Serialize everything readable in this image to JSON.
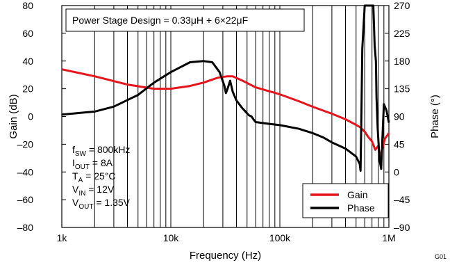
{
  "chart_data": {
    "type": "line",
    "xlabel": "Frequency (Hz)",
    "ylabel": "Gain (dB)",
    "y2label": "Phase (°)",
    "xscale": "log",
    "xlim": [
      1000,
      1000000
    ],
    "ylim": [
      -80,
      80
    ],
    "y2lim": [
      -90,
      270
    ],
    "x_ticks": [
      "1k",
      "10k",
      "100k",
      "1M"
    ],
    "y_ticks": [
      "–80",
      "–60",
      "–40",
      "–20",
      "0",
      "20",
      "40",
      "60",
      "80"
    ],
    "y2_ticks": [
      "–90",
      "–45",
      "0",
      "45",
      "90",
      "135",
      "180",
      "225",
      "270"
    ],
    "grid": "vertical log minor lines",
    "title_box": "Power Stage Design = 0.33μH + 6×22μF",
    "conditions": [
      {
        "main": "f",
        "sub": "SW",
        "rest": " = 800kHz"
      },
      {
        "main": "I",
        "sub": "OUT",
        "rest": " = 8A"
      },
      {
        "main": "T",
        "sub": "A",
        "rest": " = 25°C"
      },
      {
        "main": "V",
        "sub": "IN",
        "rest": " = 12V"
      },
      {
        "main": "V",
        "sub": "OUT",
        "rest": " = 1.35V"
      }
    ],
    "legend_position": "bottom-right",
    "figure_id": "G01",
    "series": [
      {
        "name": "Gain",
        "axis": "left",
        "color": "#e8141b",
        "x": [
          1000,
          2000,
          4000,
          7000,
          10000,
          15000,
          20000,
          27000,
          33000,
          37000,
          45000,
          60000,
          100000,
          150000,
          200000,
          300000,
          400000,
          500000,
          550000,
          600000,
          650000,
          700000,
          750000,
          800000,
          830000,
          870000,
          920000,
          1000000
        ],
        "values": [
          34,
          29,
          23,
          20,
          20,
          22,
          24.5,
          28,
          29,
          29,
          26,
          21,
          16,
          11,
          7,
          2,
          -2,
          -6,
          -8,
          -11,
          -15,
          -18,
          -24,
          -21,
          -30,
          -23,
          -16,
          -12
        ]
      },
      {
        "name": "Phase",
        "axis": "right",
        "color": "#000000",
        "x": [
          1000,
          2000,
          3000,
          5000,
          7000,
          10000,
          15000,
          20000,
          24000,
          28000,
          31000,
          32000,
          33000,
          35000,
          37000,
          40000,
          45000,
          52000,
          55000,
          58000,
          60000,
          80000,
          100000,
          150000,
          200000,
          250000,
          300000,
          400000,
          500000,
          540000,
          550000,
          560000,
          570000,
          600000,
          720000,
          740000,
          760000,
          770000,
          790000,
          820000,
          850000,
          870000,
          900000,
          950000,
          1000000
        ],
        "values": [
          93,
          98,
          106,
          125,
          145,
          162,
          178,
          180,
          178,
          162,
          140,
          128,
          134,
          148,
          130,
          116,
          104,
          92,
          90,
          84,
          81,
          78,
          76,
          70,
          63,
          56,
          48,
          38,
          25,
          13,
          2,
          100,
          200,
          270,
          270,
          205,
          180,
          120,
          70,
          20,
          5,
          50,
          110,
          100,
          80
        ]
      }
    ]
  }
}
